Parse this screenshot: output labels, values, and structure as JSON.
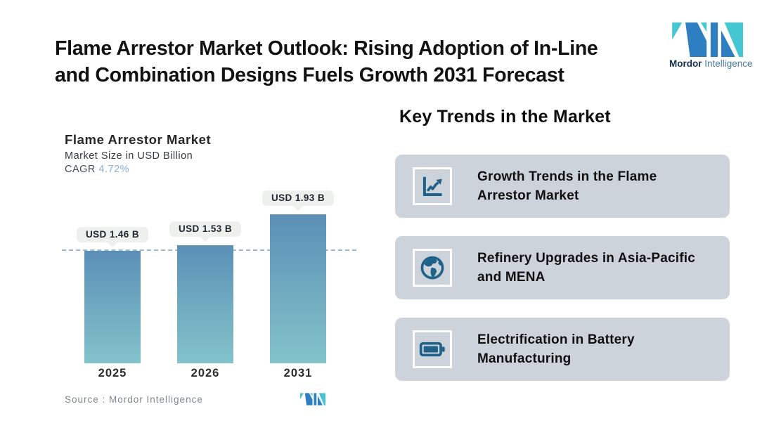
{
  "page": {
    "title_line1": "Flame Arrestor Market Outlook: Rising Adoption of In-Line",
    "title_line2": "and Combination Designs Fuels Growth 2031 Forecast"
  },
  "brand": {
    "name_bold": "Mordor",
    "name_light": "Intelligence",
    "colors": {
      "blue": "#2d7fc1",
      "teal": "#45c7d3"
    }
  },
  "chart": {
    "title": "Flame Arrestor Market",
    "subtitle": "Market Size in USD Billion",
    "cagr_label": "CAGR",
    "cagr_value": "4.72%",
    "source": "Source :  Mordor Intelligence"
  },
  "chart_data": {
    "type": "bar",
    "categories": [
      "2025",
      "2026",
      "2031"
    ],
    "values": [
      1.46,
      1.53,
      1.93
    ],
    "value_labels": [
      "USD 1.46 B",
      "USD 1.53 B",
      "USD 1.93 B"
    ],
    "title": "Flame Arrestor Market",
    "ylabel": "Market Size in USD Billion",
    "cagr": "4.72%",
    "ylim": [
      0,
      2.3
    ],
    "reference_line": 1.46,
    "grid": false,
    "legend": "none",
    "bar_color_top": "#5b8fb7",
    "bar_color_bottom": "#82c3ca",
    "reference_line_color": "#96b7cf"
  },
  "trends": {
    "heading": "Key Trends in the Market",
    "cards": [
      {
        "icon": "line-chart-icon",
        "text": "Growth Trends in the Flame Arrestor Market"
      },
      {
        "icon": "globe-icon",
        "text": "Refinery Upgrades in Asia-Pacific and MENA"
      },
      {
        "icon": "battery-icon",
        "text": "Electrification in Battery Manufacturing"
      }
    ]
  }
}
